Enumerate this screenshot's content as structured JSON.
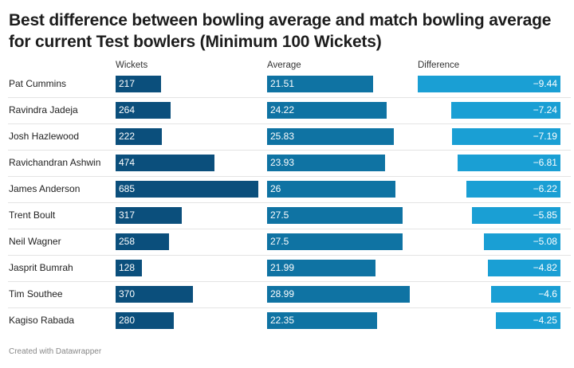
{
  "chart_data": {
    "type": "table",
    "title": "Best difference between bowling average and match bowling average for current Test bowlers (Minimum 100 Wickets)",
    "columns": [
      "Wickets",
      "Average",
      "Difference"
    ],
    "rows": [
      {
        "name": "Pat Cummins",
        "wickets": 217,
        "average": 21.51,
        "difference": -9.44
      },
      {
        "name": "Ravindra Jadeja",
        "wickets": 264,
        "average": 24.22,
        "difference": -7.24
      },
      {
        "name": "Josh Hazlewood",
        "wickets": 222,
        "average": 25.83,
        "difference": -7.19
      },
      {
        "name": "Ravichandran Ashwin",
        "wickets": 474,
        "average": 23.93,
        "difference": -6.81
      },
      {
        "name": "James Anderson",
        "wickets": 685,
        "average": 26,
        "difference": -6.22
      },
      {
        "name": "Trent Boult",
        "wickets": 317,
        "average": 27.5,
        "difference": -5.85
      },
      {
        "name": "Neil Wagner",
        "wickets": 258,
        "average": 27.5,
        "difference": -5.08
      },
      {
        "name": "Jasprit Bumrah",
        "wickets": 128,
        "average": 21.99,
        "difference": -4.82
      },
      {
        "name": "Tim Southee",
        "wickets": 370,
        "average": 28.99,
        "difference": -4.6
      },
      {
        "name": "Kagiso Rabada",
        "wickets": 280,
        "average": 22.35,
        "difference": -4.25
      }
    ],
    "value_labels": {
      "wickets": [
        "217",
        "264",
        "222",
        "474",
        "685",
        "317",
        "258",
        "128",
        "370",
        "280"
      ],
      "average": [
        "21.51",
        "24.22",
        "25.83",
        "23.93",
        "26",
        "27.5",
        "27.5",
        "21.99",
        "28.99",
        "22.35"
      ],
      "difference": [
        "−9.44",
        "−7.24",
        "−7.19",
        "−6.81",
        "−6.22",
        "−5.85",
        "−5.08",
        "−4.82",
        "−4.6",
        "−4.25"
      ]
    },
    "colors": {
      "wickets": "#0b4f7c",
      "average": "#0f73a3",
      "difference": "#1a9fd4"
    }
  },
  "footer": "Created with Datawrapper"
}
